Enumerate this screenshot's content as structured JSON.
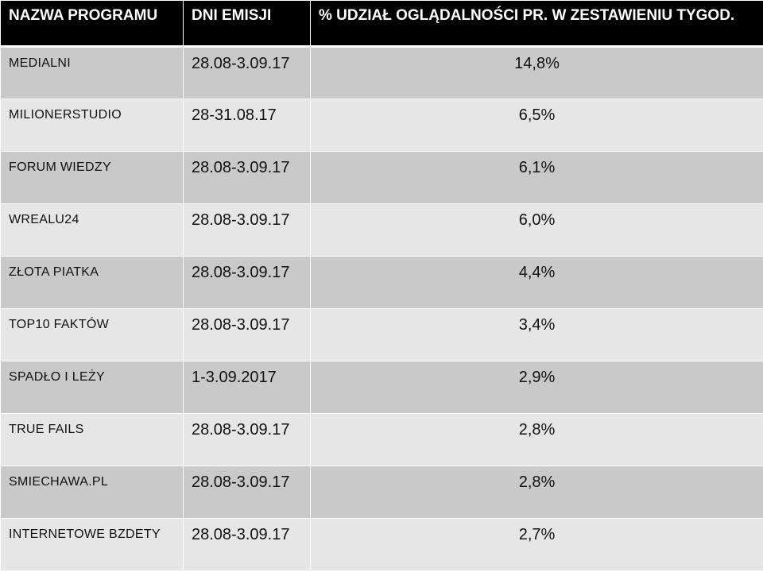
{
  "table": {
    "headers": [
      "NAZWA PROGRAMU",
      "DNI EMISJI",
      "% UDZIAŁ OGLĄDALNOŚCI PR. W ZESTAWIENIU TYGOD."
    ],
    "rows": [
      {
        "name": "MEDIALNI",
        "dates": "28.08-3.09.17",
        "share": "14,8%"
      },
      {
        "name": "MILIONERSTUDIO",
        "dates": "28-31.08.17",
        "share": "6,5%"
      },
      {
        "name": "FORUM WIEDZY",
        "dates": "28.08-3.09.17",
        "share": "6,1%"
      },
      {
        "name": "WREALU24",
        "dates": "28.08-3.09.17",
        "share": "6,0%"
      },
      {
        "name": "ZŁOTA  PIATKA",
        "dates": "28.08-3.09.17",
        "share": "4,4%"
      },
      {
        "name": "TOP10 FAKTÓW",
        "dates": "28.08-3.09.17",
        "share": "3,4%"
      },
      {
        "name": "SPADŁO I LEŻY",
        "dates": "1-3.09.2017",
        "share": "2,9%"
      },
      {
        "name": "TRUE  FAILS",
        "dates": "28.08-3.09.17",
        "share": "2,8%"
      },
      {
        "name": "SMIECHAWA.PL",
        "dates": "28.08-3.09.17",
        "share": "2,8%"
      },
      {
        "name": "INTERNETOWE  BZDETY",
        "dates": "28.08-3.09.17",
        "share": "2,7%"
      }
    ]
  },
  "colors": {
    "header_bg": "#000000",
    "row_dark": "#c9c9c9",
    "row_light": "#e6e6e6"
  }
}
